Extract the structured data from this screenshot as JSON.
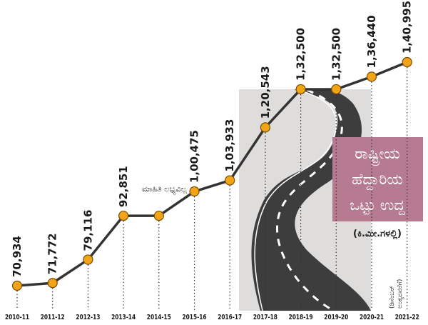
{
  "chart_data": {
    "type": "line",
    "categories": [
      "2010-11",
      "2011-12",
      "2012-13",
      "2013-14",
      "2014-15",
      "2015-16",
      "2016-17",
      "2017-18",
      "2018-19",
      "2019-20",
      "2020-21",
      "2021-22"
    ],
    "values": [
      70934,
      71772,
      79116,
      92851,
      null,
      100475,
      103933,
      120543,
      132500,
      132500,
      136440,
      140995
    ],
    "value_labels": [
      "70,934",
      "71,772",
      "79,116",
      "92,851",
      "",
      "1,00,475",
      "1,03,933",
      "1,20,543",
      "1,32,500",
      "1,32,500",
      "1,36,440",
      "1,40,995"
    ],
    "missing_label": "ಮಾಹಿತಿ ಲಭ್ಯವಿಲ್ಲ",
    "legend_title_lines": [
      "ರಾಷ್ಟ್ರೀಯ",
      "ಹೆದ್ದಾರಿಯ",
      "ಒಟ್ಟು ಉದ್ದ"
    ],
    "unit": "(ಕಿ.ಮೀ.ಗಳಲ್ಲಿ)",
    "note_lines": [
      "(ಡಿಸೆಂಬರ್",
      "ಅಂತ್ಯದವರೆಗೆ)"
    ],
    "colors": {
      "line": "#333333",
      "marker": "#f0a418",
      "marker_stroke": "#7a4d00",
      "legend_box": "#b77b91",
      "road": "#3d3d3d"
    }
  }
}
